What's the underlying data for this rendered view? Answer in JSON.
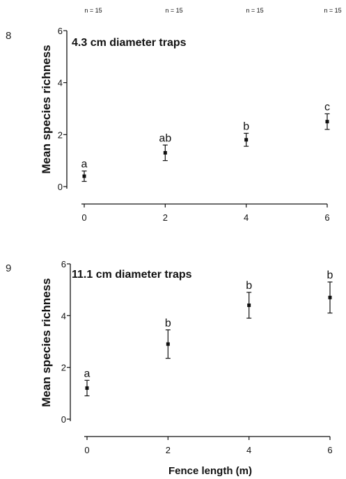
{
  "n_labels": [
    "n = 15",
    "n = 15",
    "n = 15",
    "n = 15"
  ],
  "shared_xlabel": "Fence length (m)",
  "chart_data": [
    {
      "type": "scatter",
      "panel_number": "8",
      "title": "4.3 cm diameter traps",
      "ylabel": "Mean species richness",
      "xlabel": "",
      "x": [
        0,
        2,
        4,
        6
      ],
      "y": [
        0.4,
        1.3,
        1.8,
        2.5
      ],
      "err_low": [
        0.2,
        0.3,
        0.25,
        0.3
      ],
      "err_high": [
        0.2,
        0.3,
        0.25,
        0.3
      ],
      "letters": [
        "a",
        "ab",
        "b",
        "c"
      ],
      "xlim": [
        0,
        6
      ],
      "ylim": [
        0,
        6
      ],
      "xticks": [
        "0",
        "2",
        "4",
        "6"
      ],
      "yticks": [
        "0",
        "2",
        "4",
        "6"
      ]
    },
    {
      "type": "scatter",
      "panel_number": "9",
      "title": "11.1 cm diameter traps",
      "ylabel": "Mean species richness",
      "xlabel": "Fence length (m)",
      "x": [
        0,
        2,
        4,
        6
      ],
      "y": [
        1.2,
        2.9,
        4.4,
        4.7
      ],
      "err_low": [
        0.3,
        0.55,
        0.5,
        0.6
      ],
      "err_high": [
        0.3,
        0.55,
        0.5,
        0.6
      ],
      "letters": [
        "a",
        "b",
        "b",
        "b"
      ],
      "xlim": [
        0,
        6
      ],
      "ylim": [
        0,
        6
      ],
      "xticks": [
        "0",
        "2",
        "4",
        "6"
      ],
      "yticks": [
        "0",
        "2",
        "4",
        "6"
      ]
    }
  ]
}
